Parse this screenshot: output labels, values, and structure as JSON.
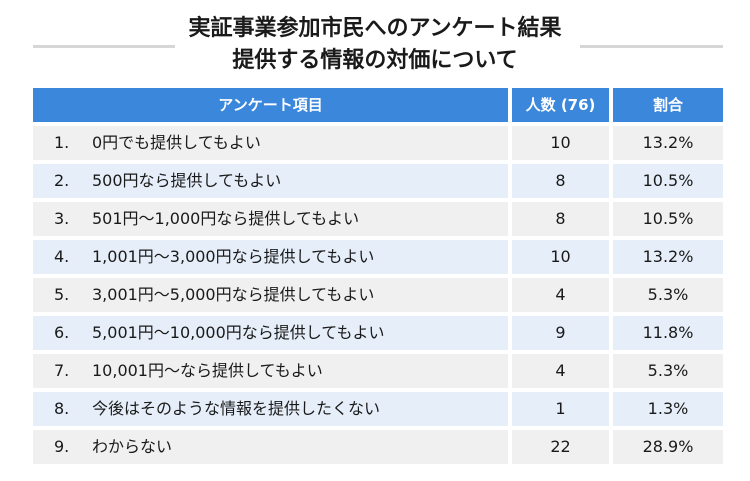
{
  "title": {
    "line1": "実証事業参加市民へのアンケート結果",
    "line2": "提供する情報の対価について"
  },
  "table": {
    "headers": [
      "アンケート項目",
      "人数 (76)",
      "割合"
    ],
    "rows": [
      {
        "no": "1.",
        "item": "0円でも提供してもよい",
        "count": "10",
        "percent": "13.2%"
      },
      {
        "no": "2.",
        "item": "500円なら提供してもよい",
        "count": "8",
        "percent": "10.5%"
      },
      {
        "no": "3.",
        "item": "501円〜1,000円なら提供してもよい",
        "count": "8",
        "percent": "10.5%"
      },
      {
        "no": "4.",
        "item": "1,001円〜3,000円なら提供してもよい",
        "count": "10",
        "percent": "13.2%"
      },
      {
        "no": "5.",
        "item": "3,001円〜5,000円なら提供してもよい",
        "count": "4",
        "percent": "5.3%"
      },
      {
        "no": "6.",
        "item": "5,001円〜10,000円なら提供してもよい",
        "count": "9",
        "percent": "11.8%"
      },
      {
        "no": "7.",
        "item": "10,001円〜なら提供してもよい",
        "count": "4",
        "percent": "5.3%"
      },
      {
        "no": "8.",
        "item": "今後はそのような情報を提供したくない",
        "count": "1",
        "percent": "1.3%"
      },
      {
        "no": "9.",
        "item": "わからない",
        "count": "22",
        "percent": "28.9%"
      }
    ]
  },
  "colors": {
    "header_bg": "#3a87dc",
    "row_gray": "#f0f0f0",
    "row_blue": "#e6eff9"
  }
}
